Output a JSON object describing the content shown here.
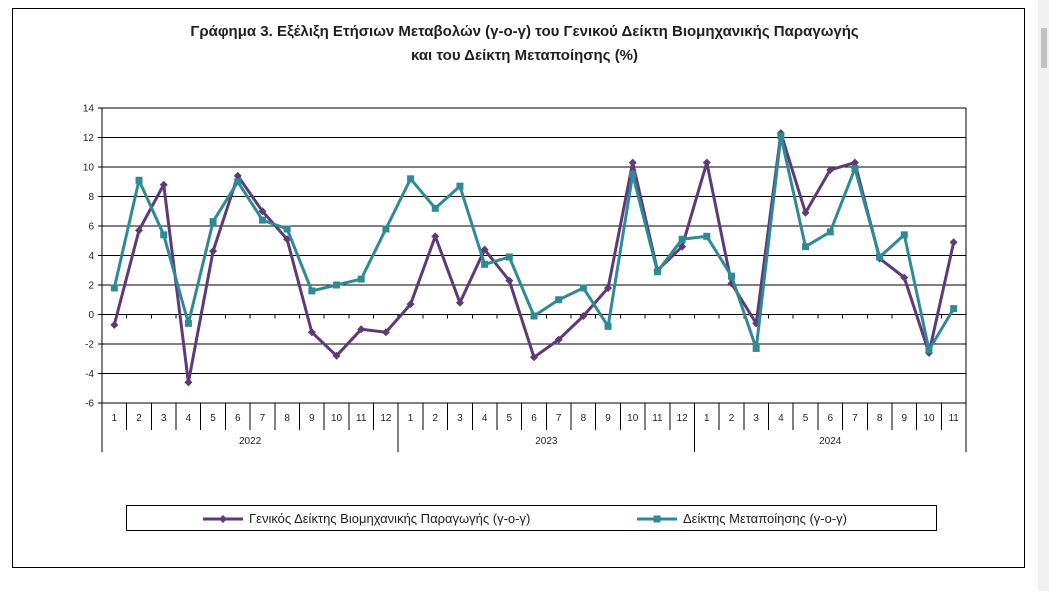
{
  "chart_data": {
    "type": "line",
    "title": [
      "Γράφημα 3. Εξέλιξη Ετήσιων Μεταβολών (γ-ο-γ) του Γενικού Δείκτη Βιομηχανικής Παραγωγής",
      "και του Δείκτη Μεταποίησης (%)"
    ],
    "xlabel": "",
    "ylabel": "",
    "ylim": [
      -6,
      14
    ],
    "yticks": [
      -6,
      -4,
      -2,
      0,
      2,
      4,
      6,
      8,
      10,
      12,
      14
    ],
    "grid": "horizontal",
    "legend_position": "bottom",
    "categories": [
      "1",
      "2",
      "3",
      "4",
      "5",
      "6",
      "7",
      "8",
      "9",
      "10",
      "11",
      "12",
      "1",
      "2",
      "3",
      "4",
      "5",
      "6",
      "7",
      "8",
      "9",
      "10",
      "11",
      "12",
      "1",
      "2",
      "3",
      "4",
      "5",
      "6",
      "7",
      "8",
      "9",
      "10",
      "11"
    ],
    "years": [
      {
        "label": "2022",
        "count": 12
      },
      {
        "label": "2023",
        "count": 12
      },
      {
        "label": "2024",
        "count": 11
      }
    ],
    "series": [
      {
        "name": "Γενικός Δείκτης Βιομηχανικής Παραγωγής (γ-ο-γ)",
        "color": "#5e3a79",
        "marker": "diamond",
        "values": [
          -0.7,
          5.7,
          8.8,
          -4.6,
          4.3,
          9.4,
          7.0,
          5.1,
          -1.2,
          -2.8,
          -1.0,
          -1.2,
          0.7,
          5.3,
          0.8,
          4.4,
          2.3,
          -2.9,
          -1.7,
          -0.1,
          1.8,
          10.3,
          3.0,
          4.6,
          10.3,
          2.1,
          -0.6,
          12.3,
          6.9,
          9.8,
          10.3,
          3.8,
          2.5,
          -2.6,
          4.9
        ]
      },
      {
        "name": "Δείκτης Μεταποίησης (γ-ο-γ)",
        "color": "#2e8b96",
        "marker": "square",
        "values": [
          1.8,
          9.1,
          5.4,
          -0.6,
          6.3,
          9.0,
          6.4,
          5.8,
          1.6,
          2.0,
          2.4,
          5.8,
          9.2,
          7.2,
          8.7,
          3.4,
          3.9,
          -0.1,
          1.0,
          1.8,
          -0.8,
          9.5,
          2.9,
          5.1,
          5.3,
          2.6,
          -2.3,
          12.1,
          4.6,
          5.6,
          9.9,
          3.9,
          5.4,
          -2.4,
          0.4
        ]
      }
    ]
  }
}
